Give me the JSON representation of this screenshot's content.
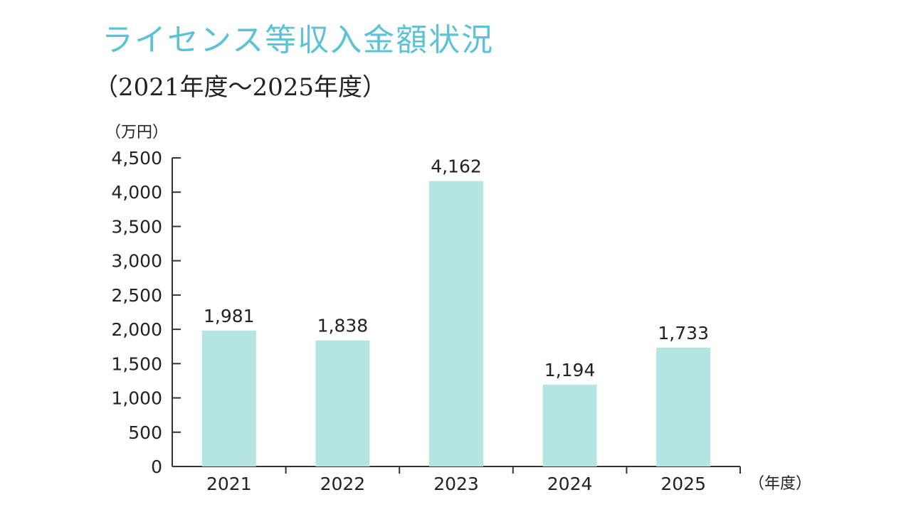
{
  "chart_data": {
    "type": "bar",
    "title": "ライセンス等収入金額状況",
    "subtitle": "（2021年度～2025年度）",
    "ylabel": "（万円）",
    "xlabel": "（年度）",
    "categories": [
      "2021",
      "2022",
      "2023",
      "2024",
      "2025"
    ],
    "values": [
      1981,
      1838,
      4162,
      1194,
      1733
    ],
    "value_labels": [
      "1,981",
      "1,838",
      "4,162",
      "1,194",
      "1,733"
    ],
    "ylim": [
      0,
      4500
    ],
    "yticks": [
      0,
      500,
      1000,
      1500,
      2000,
      2500,
      3000,
      3500,
      4000,
      4500
    ],
    "ytick_labels": [
      "0",
      "500",
      "1,000",
      "1,500",
      "2,000",
      "2,500",
      "3,000",
      "3,500",
      "4,000",
      "4,500"
    ],
    "grid": false,
    "colors": {
      "bar": "#b3e6e3",
      "title": "#5cc3d6",
      "axis": "#333333"
    }
  }
}
